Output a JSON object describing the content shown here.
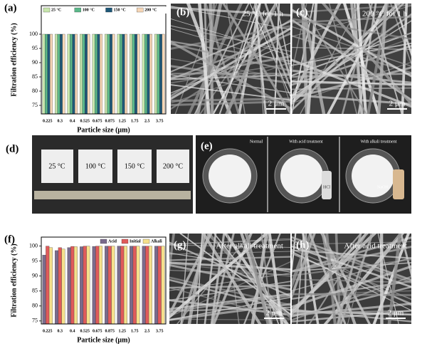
{
  "panels": {
    "b": {
      "label": "(b)",
      "caption": "25 °C for 1 h",
      "scale": "2 μm"
    },
    "c": {
      "label": "(c)",
      "caption": "200 °C for 1 h",
      "scale": "2 μm"
    },
    "d": {
      "label": "(d)",
      "samples": [
        "25 °C",
        "100 °C",
        "150 °C",
        "200 °C"
      ]
    },
    "e": {
      "label": "(e)",
      "captions": [
        "Normal",
        "With acid treatment",
        "With alkali treatment"
      ],
      "bottles": [
        "HCl",
        "NaOH"
      ]
    },
    "g": {
      "label": "(g)",
      "caption": "After alkali treatment",
      "scale": "2 μm"
    },
    "h": {
      "label": "(h)",
      "caption": "After acid treatment",
      "scale": "2 μm"
    }
  },
  "chart_data": [
    {
      "type": "bar",
      "panel": "(a)",
      "ylabel": "Filtration efficiency (%)",
      "xlabel": "Particle size (μm)",
      "categories": [
        "0.225",
        "0.3",
        "0.4",
        "0.525",
        "0.675",
        "0.875",
        "1.25",
        "1.75",
        "2.5",
        "3.75"
      ],
      "series": [
        {
          "name": "25 °C",
          "color": "#c8e6ad",
          "values": [
            100,
            100,
            100,
            100,
            100,
            100,
            100,
            100,
            100,
            100
          ]
        },
        {
          "name": "100 °C",
          "color": "#5bb889",
          "values": [
            100,
            100,
            100,
            100,
            100,
            100,
            100,
            100,
            100,
            100
          ]
        },
        {
          "name": "150 °C",
          "color": "#1e5878",
          "values": [
            100,
            100,
            100,
            100,
            100,
            100,
            100,
            100,
            100,
            100
          ]
        },
        {
          "name": "200 °C",
          "color": "#f6d6b6",
          "values": [
            100,
            100,
            100,
            100,
            100,
            100,
            100,
            100,
            100,
            100
          ]
        }
      ],
      "ylim": [
        72,
        110
      ],
      "yticks": [
        75,
        80,
        85,
        90,
        95,
        100
      ],
      "legend": "top"
    },
    {
      "type": "bar",
      "panel": "(f)",
      "ylabel": "Filtration efficiency (%)",
      "xlabel": "Particle size (μm)",
      "categories": [
        "0.225",
        "0.3",
        "0.4",
        "0.525",
        "0.675",
        "0.875",
        "1.25",
        "1.75",
        "2.5",
        "3.75"
      ],
      "series": [
        {
          "name": "Acid",
          "color": "#7a6b8c",
          "values": [
            97,
            98.5,
            99.5,
            99.8,
            99.9,
            100,
            100,
            100,
            100,
            100
          ]
        },
        {
          "name": "Initial",
          "color": "#e05b5b",
          "values": [
            100,
            99.5,
            99.9,
            100,
            100,
            100,
            100,
            100,
            100,
            100
          ]
        },
        {
          "name": "Alkali",
          "color": "#f5e08c",
          "values": [
            99.5,
            99,
            99.8,
            100,
            100,
            100,
            100,
            100,
            100,
            100
          ]
        }
      ],
      "ylim": [
        74,
        103
      ],
      "yticks": [
        75,
        80,
        85,
        90,
        95,
        100
      ],
      "legend": "upper right"
    }
  ]
}
